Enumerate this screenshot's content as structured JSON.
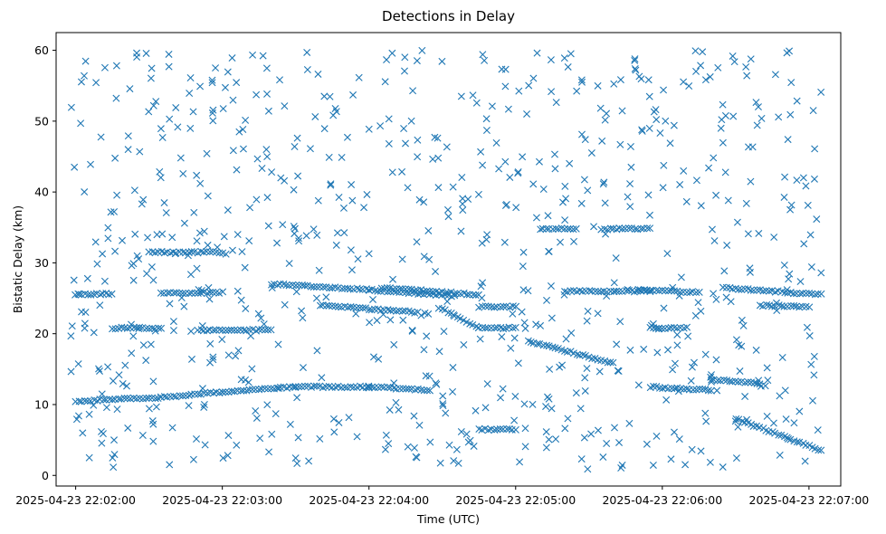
{
  "chart_data": {
    "type": "scatter",
    "title": "Detections in Delay",
    "xlabel": "Time (UTC)",
    "ylabel": "Bistatic Delay (km)",
    "x_ticks": [
      "2025-04-23 22:02:00",
      "2025-04-23 22:03:00",
      "2025-04-23 22:04:00",
      "2025-04-23 22:05:00",
      "2025-04-23 22:06:00",
      "2025-04-23 22:07:00"
    ],
    "y_ticks": [
      0,
      10,
      20,
      30,
      40,
      50,
      60
    ],
    "xlim": [
      "2025-04-23 22:01:52",
      "2025-04-23 22:07:13"
    ],
    "ylim": [
      -1.5,
      62.5
    ],
    "grid": false,
    "marker": "x",
    "color": "#1f77b4",
    "series": [
      {
        "tracks": [
          {
            "x": [
              "2025-04-23 22:02:00",
              "2025-04-23 22:02:35",
              "2025-04-23 22:03:00",
              "2025-04-23 22:03:30",
              "2025-04-23 22:04:00",
              "2025-04-23 22:04:25"
            ],
            "y": [
              10.5,
              11.0,
              11.8,
              12.5,
              12.5,
              12.0
            ]
          },
          {
            "x": [
              "2025-04-23 22:02:00",
              "2025-04-23 22:02:15"
            ],
            "y": [
              25.6,
              25.6
            ]
          },
          {
            "x": [
              "2025-04-23 22:02:15",
              "2025-04-23 22:02:35"
            ],
            "y": [
              20.8,
              20.8
            ]
          },
          {
            "x": [
              "2025-04-23 22:02:35",
              "2025-04-23 22:03:00"
            ],
            "y": [
              25.8,
              25.8
            ]
          },
          {
            "x": [
              "2025-04-23 22:02:30",
              "2025-04-23 22:03:00"
            ],
            "y": [
              31.5,
              31.5
            ]
          },
          {
            "x": [
              "2025-04-23 22:02:50",
              "2025-04-23 22:03:20"
            ],
            "y": [
              20.5,
              20.5
            ]
          },
          {
            "x": [
              "2025-04-23 22:03:20",
              "2025-04-23 22:04:00",
              "2025-04-23 22:04:35"
            ],
            "y": [
              27.0,
              26.2,
              25.3
            ]
          },
          {
            "x": [
              "2025-04-23 22:03:40",
              "2025-04-23 22:04:20"
            ],
            "y": [
              24.0,
              23.0
            ]
          },
          {
            "x": [
              "2025-04-23 22:04:05",
              "2025-04-23 22:04:45"
            ],
            "y": [
              26.5,
              25.5
            ]
          },
          {
            "x": [
              "2025-04-23 22:04:30",
              "2025-04-23 22:04:45"
            ],
            "y": [
              23.5,
              20.8
            ]
          },
          {
            "x": [
              "2025-04-23 22:04:45",
              "2025-04-23 22:05:00"
            ],
            "y": [
              20.8,
              20.8
            ]
          },
          {
            "x": [
              "2025-04-23 22:04:45",
              "2025-04-23 22:05:00"
            ],
            "y": [
              23.8,
              23.8
            ]
          },
          {
            "x": [
              "2025-04-23 22:04:45",
              "2025-04-23 22:05:00"
            ],
            "y": [
              6.5,
              6.5
            ]
          },
          {
            "x": [
              "2025-04-23 22:05:05",
              "2025-04-23 22:05:40"
            ],
            "y": [
              19.0,
              15.8
            ]
          },
          {
            "x": [
              "2025-04-23 22:05:10",
              "2025-04-23 22:05:25"
            ],
            "y": [
              34.8,
              34.8
            ]
          },
          {
            "x": [
              "2025-04-23 22:05:20",
              "2025-04-23 22:05:55"
            ],
            "y": [
              26.0,
              26.0
            ]
          },
          {
            "x": [
              "2025-04-23 22:05:35",
              "2025-04-23 22:05:55"
            ],
            "y": [
              34.8,
              34.8
            ]
          },
          {
            "x": [
              "2025-04-23 22:05:50",
              "2025-04-23 22:06:15"
            ],
            "y": [
              26.2,
              25.8
            ]
          },
          {
            "x": [
              "2025-04-23 22:05:55",
              "2025-04-23 22:06:10"
            ],
            "y": [
              20.8,
              20.8
            ]
          },
          {
            "x": [
              "2025-04-23 22:05:55",
              "2025-04-23 22:06:20"
            ],
            "y": [
              12.5,
              12.0
            ]
          },
          {
            "x": [
              "2025-04-23 22:06:20",
              "2025-04-23 22:06:40"
            ],
            "y": [
              13.5,
              13.0
            ]
          },
          {
            "x": [
              "2025-04-23 22:06:25",
              "2025-04-23 22:07:05"
            ],
            "y": [
              26.5,
              25.5
            ]
          },
          {
            "x": [
              "2025-04-23 22:06:30",
              "2025-04-23 22:07:05"
            ],
            "y": [
              8.0,
              3.5
            ]
          },
          {
            "x": [
              "2025-04-23 22:06:40",
              "2025-04-23 22:07:00"
            ],
            "y": [
              24.0,
              23.8
            ]
          }
        ]
      }
    ]
  }
}
